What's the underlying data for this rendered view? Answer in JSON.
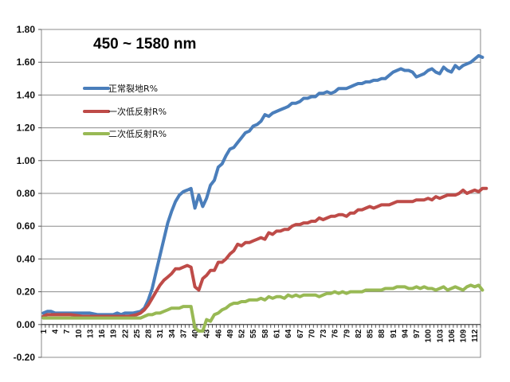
{
  "chart_data": {
    "type": "line",
    "title": "450 ~ 1580 nm",
    "xlabel": "",
    "ylabel": "",
    "ylim": [
      -0.2,
      1.8
    ],
    "ytick_step": 0.2,
    "grid": true,
    "legend_position": "upper-left (inside plot)",
    "x_start": 1,
    "x_end": 113,
    "x_tick_labels": [
      "1",
      "4",
      "7",
      "10",
      "13",
      "16",
      "19",
      "22",
      "25",
      "28",
      "31",
      "34",
      "37",
      "40",
      "43",
      "46",
      "49",
      "52",
      "55",
      "58",
      "61",
      "64",
      "67",
      "70",
      "73",
      "76",
      "79",
      "82",
      "85",
      "88",
      "91",
      "94",
      "97",
      "100",
      "103",
      "106",
      "109",
      "112"
    ],
    "series": [
      {
        "name": "正常裂地R%",
        "color": "#4a7ebb",
        "points": [
          [
            1,
            0.07
          ],
          [
            2,
            0.08
          ],
          [
            3,
            0.08
          ],
          [
            4,
            0.07
          ],
          [
            10,
            0.07
          ],
          [
            13,
            0.07
          ],
          [
            15,
            0.06
          ],
          [
            19,
            0.06
          ],
          [
            20,
            0.07
          ],
          [
            21,
            0.06
          ],
          [
            22,
            0.07
          ],
          [
            24,
            0.07
          ],
          [
            26,
            0.08
          ],
          [
            27,
            0.1
          ],
          [
            28,
            0.15
          ],
          [
            29,
            0.22
          ],
          [
            30,
            0.32
          ],
          [
            31,
            0.42
          ],
          [
            32,
            0.52
          ],
          [
            33,
            0.62
          ],
          [
            34,
            0.69
          ],
          [
            35,
            0.75
          ],
          [
            36,
            0.79
          ],
          [
            37,
            0.81
          ],
          [
            38,
            0.82
          ],
          [
            39,
            0.83
          ],
          [
            40,
            0.71
          ],
          [
            41,
            0.79
          ],
          [
            42,
            0.72
          ],
          [
            43,
            0.77
          ],
          [
            44,
            0.85
          ],
          [
            45,
            0.88
          ],
          [
            46,
            0.96
          ],
          [
            47,
            0.98
          ],
          [
            48,
            1.03
          ],
          [
            49,
            1.07
          ],
          [
            50,
            1.08
          ],
          [
            51,
            1.11
          ],
          [
            52,
            1.14
          ],
          [
            53,
            1.17
          ],
          [
            54,
            1.18
          ],
          [
            55,
            1.21
          ],
          [
            56,
            1.22
          ],
          [
            57,
            1.24
          ],
          [
            58,
            1.28
          ],
          [
            59,
            1.27
          ],
          [
            60,
            1.29
          ],
          [
            61,
            1.3
          ],
          [
            62,
            1.31
          ],
          [
            63,
            1.32
          ],
          [
            64,
            1.33
          ],
          [
            65,
            1.35
          ],
          [
            66,
            1.35
          ],
          [
            67,
            1.36
          ],
          [
            68,
            1.38
          ],
          [
            69,
            1.38
          ],
          [
            70,
            1.39
          ],
          [
            71,
            1.39
          ],
          [
            72,
            1.41
          ],
          [
            73,
            1.41
          ],
          [
            74,
            1.42
          ],
          [
            75,
            1.41
          ],
          [
            76,
            1.42
          ],
          [
            77,
            1.44
          ],
          [
            78,
            1.44
          ],
          [
            79,
            1.44
          ],
          [
            80,
            1.45
          ],
          [
            81,
            1.46
          ],
          [
            82,
            1.47
          ],
          [
            83,
            1.47
          ],
          [
            84,
            1.48
          ],
          [
            85,
            1.48
          ],
          [
            86,
            1.49
          ],
          [
            87,
            1.49
          ],
          [
            88,
            1.5
          ],
          [
            89,
            1.5
          ],
          [
            90,
            1.52
          ],
          [
            91,
            1.54
          ],
          [
            92,
            1.55
          ],
          [
            93,
            1.56
          ],
          [
            94,
            1.55
          ],
          [
            95,
            1.55
          ],
          [
            96,
            1.54
          ],
          [
            97,
            1.51
          ],
          [
            98,
            1.52
          ],
          [
            99,
            1.53
          ],
          [
            100,
            1.55
          ],
          [
            101,
            1.56
          ],
          [
            102,
            1.54
          ],
          [
            103,
            1.53
          ],
          [
            104,
            1.57
          ],
          [
            105,
            1.55
          ],
          [
            106,
            1.54
          ],
          [
            107,
            1.58
          ],
          [
            108,
            1.56
          ],
          [
            109,
            1.58
          ],
          [
            110,
            1.59
          ],
          [
            111,
            1.6
          ],
          [
            112,
            1.62
          ],
          [
            113,
            1.64
          ],
          [
            114,
            1.63
          ]
        ]
      },
      {
        "name": "一次低反射R%",
        "color": "#be4b48",
        "points": [
          [
            1,
            0.05
          ],
          [
            2,
            0.06
          ],
          [
            5,
            0.06
          ],
          [
            8,
            0.06
          ],
          [
            11,
            0.05
          ],
          [
            14,
            0.05
          ],
          [
            17,
            0.05
          ],
          [
            20,
            0.05
          ],
          [
            23,
            0.05
          ],
          [
            25,
            0.06
          ],
          [
            26,
            0.07
          ],
          [
            27,
            0.09
          ],
          [
            28,
            0.12
          ],
          [
            29,
            0.16
          ],
          [
            30,
            0.2
          ],
          [
            31,
            0.24
          ],
          [
            32,
            0.27
          ],
          [
            33,
            0.29
          ],
          [
            34,
            0.31
          ],
          [
            35,
            0.34
          ],
          [
            36,
            0.34
          ],
          [
            37,
            0.35
          ],
          [
            38,
            0.36
          ],
          [
            39,
            0.35
          ],
          [
            40,
            0.23
          ],
          [
            41,
            0.21
          ],
          [
            42,
            0.28
          ],
          [
            43,
            0.3
          ],
          [
            44,
            0.33
          ],
          [
            45,
            0.33
          ],
          [
            46,
            0.38
          ],
          [
            47,
            0.38
          ],
          [
            48,
            0.4
          ],
          [
            49,
            0.43
          ],
          [
            50,
            0.45
          ],
          [
            51,
            0.49
          ],
          [
            52,
            0.48
          ],
          [
            53,
            0.5
          ],
          [
            54,
            0.5
          ],
          [
            55,
            0.51
          ],
          [
            56,
            0.52
          ],
          [
            57,
            0.53
          ],
          [
            58,
            0.52
          ],
          [
            59,
            0.56
          ],
          [
            60,
            0.55
          ],
          [
            61,
            0.57
          ],
          [
            62,
            0.57
          ],
          [
            63,
            0.58
          ],
          [
            64,
            0.58
          ],
          [
            65,
            0.6
          ],
          [
            66,
            0.61
          ],
          [
            67,
            0.61
          ],
          [
            68,
            0.62
          ],
          [
            69,
            0.62
          ],
          [
            70,
            0.63
          ],
          [
            71,
            0.63
          ],
          [
            72,
            0.65
          ],
          [
            73,
            0.64
          ],
          [
            74,
            0.65
          ],
          [
            75,
            0.66
          ],
          [
            76,
            0.66
          ],
          [
            77,
            0.67
          ],
          [
            78,
            0.67
          ],
          [
            79,
            0.66
          ],
          [
            80,
            0.68
          ],
          [
            81,
            0.68
          ],
          [
            82,
            0.7
          ],
          [
            83,
            0.7
          ],
          [
            84,
            0.71
          ],
          [
            85,
            0.72
          ],
          [
            86,
            0.71
          ],
          [
            87,
            0.72
          ],
          [
            88,
            0.73
          ],
          [
            89,
            0.73
          ],
          [
            90,
            0.73
          ],
          [
            91,
            0.74
          ],
          [
            92,
            0.75
          ],
          [
            93,
            0.75
          ],
          [
            94,
            0.75
          ],
          [
            95,
            0.75
          ],
          [
            96,
            0.75
          ],
          [
            97,
            0.76
          ],
          [
            98,
            0.76
          ],
          [
            99,
            0.76
          ],
          [
            100,
            0.77
          ],
          [
            101,
            0.76
          ],
          [
            102,
            0.78
          ],
          [
            103,
            0.77
          ],
          [
            104,
            0.78
          ],
          [
            105,
            0.79
          ],
          [
            106,
            0.79
          ],
          [
            107,
            0.79
          ],
          [
            108,
            0.8
          ],
          [
            109,
            0.82
          ],
          [
            110,
            0.8
          ],
          [
            111,
            0.81
          ],
          [
            112,
            0.82
          ],
          [
            113,
            0.81
          ],
          [
            114,
            0.83
          ],
          [
            115,
            0.83
          ]
        ]
      },
      {
        "name": "二次低反射R%",
        "color": "#98b954",
        "points": [
          [
            1,
            0.04
          ],
          [
            4,
            0.04
          ],
          [
            7,
            0.04
          ],
          [
            10,
            0.04
          ],
          [
            13,
            0.04
          ],
          [
            16,
            0.04
          ],
          [
            19,
            0.04
          ],
          [
            22,
            0.04
          ],
          [
            25,
            0.04
          ],
          [
            26,
            0.04
          ],
          [
            27,
            0.05
          ],
          [
            28,
            0.06
          ],
          [
            29,
            0.06
          ],
          [
            30,
            0.07
          ],
          [
            31,
            0.07
          ],
          [
            32,
            0.08
          ],
          [
            33,
            0.09
          ],
          [
            34,
            0.1
          ],
          [
            35,
            0.1
          ],
          [
            36,
            0.1
          ],
          [
            37,
            0.11
          ],
          [
            38,
            0.11
          ],
          [
            39,
            0.11
          ],
          [
            40,
            -0.02
          ],
          [
            41,
            -0.04
          ],
          [
            42,
            -0.04
          ],
          [
            43,
            0.03
          ],
          [
            44,
            0.02
          ],
          [
            45,
            0.06
          ],
          [
            46,
            0.07
          ],
          [
            47,
            0.09
          ],
          [
            48,
            0.1
          ],
          [
            49,
            0.12
          ],
          [
            50,
            0.13
          ],
          [
            51,
            0.13
          ],
          [
            52,
            0.14
          ],
          [
            53,
            0.14
          ],
          [
            54,
            0.15
          ],
          [
            55,
            0.15
          ],
          [
            56,
            0.15
          ],
          [
            57,
            0.16
          ],
          [
            58,
            0.15
          ],
          [
            59,
            0.17
          ],
          [
            60,
            0.16
          ],
          [
            61,
            0.17
          ],
          [
            62,
            0.17
          ],
          [
            63,
            0.16
          ],
          [
            64,
            0.18
          ],
          [
            65,
            0.17
          ],
          [
            66,
            0.18
          ],
          [
            67,
            0.17
          ],
          [
            68,
            0.18
          ],
          [
            69,
            0.18
          ],
          [
            70,
            0.18
          ],
          [
            71,
            0.18
          ],
          [
            72,
            0.17
          ],
          [
            73,
            0.18
          ],
          [
            74,
            0.19
          ],
          [
            75,
            0.19
          ],
          [
            76,
            0.2
          ],
          [
            77,
            0.19
          ],
          [
            78,
            0.2
          ],
          [
            79,
            0.19
          ],
          [
            80,
            0.2
          ],
          [
            81,
            0.2
          ],
          [
            82,
            0.2
          ],
          [
            83,
            0.2
          ],
          [
            84,
            0.21
          ],
          [
            85,
            0.21
          ],
          [
            86,
            0.21
          ],
          [
            87,
            0.21
          ],
          [
            88,
            0.21
          ],
          [
            89,
            0.22
          ],
          [
            90,
            0.22
          ],
          [
            91,
            0.22
          ],
          [
            92,
            0.23
          ],
          [
            93,
            0.23
          ],
          [
            94,
            0.23
          ],
          [
            95,
            0.22
          ],
          [
            96,
            0.22
          ],
          [
            97,
            0.23
          ],
          [
            98,
            0.22
          ],
          [
            99,
            0.23
          ],
          [
            100,
            0.22
          ],
          [
            101,
            0.22
          ],
          [
            102,
            0.21
          ],
          [
            103,
            0.22
          ],
          [
            104,
            0.23
          ],
          [
            105,
            0.21
          ],
          [
            106,
            0.22
          ],
          [
            107,
            0.23
          ],
          [
            108,
            0.22
          ],
          [
            109,
            0.21
          ],
          [
            110,
            0.23
          ],
          [
            111,
            0.24
          ],
          [
            112,
            0.23
          ],
          [
            113,
            0.24
          ],
          [
            114,
            0.21
          ]
        ]
      }
    ]
  }
}
